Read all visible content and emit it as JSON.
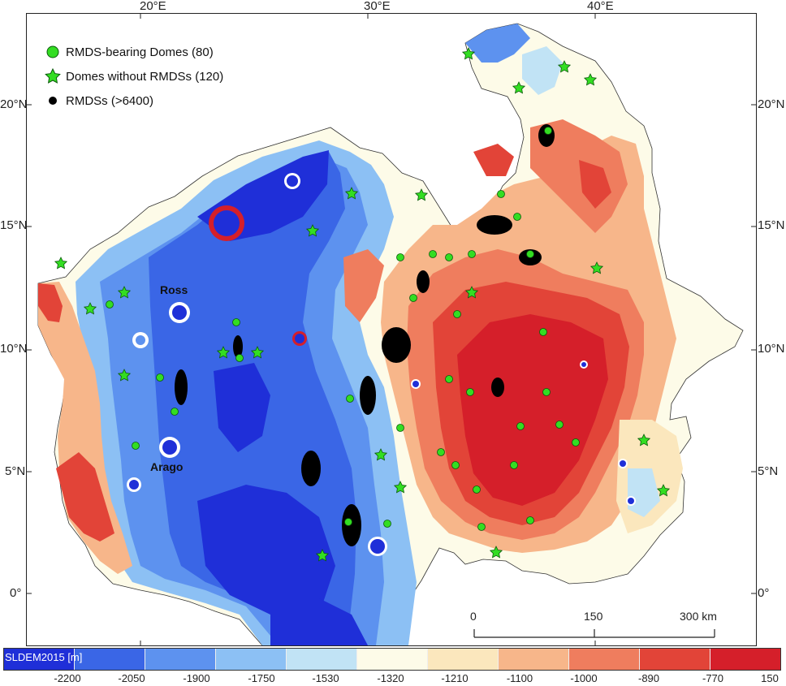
{
  "map": {
    "lon_labels": [
      "20°E",
      "30°E",
      "40°E"
    ],
    "lat_labels": [
      "20°N",
      "15°N",
      "10°N",
      "5°N",
      "0°"
    ],
    "crater_labels": {
      "ross": "Ross",
      "arago": "Arago"
    },
    "scale_bar": {
      "ticks": [
        "0",
        "150",
        "300 km"
      ]
    }
  },
  "legend": {
    "items": [
      {
        "label": "RMDS-bearing Domes (80)",
        "symbol": "circle",
        "color": "#33dd22"
      },
      {
        "label": "Domes without RMDSs (120)",
        "symbol": "star",
        "color": "#33dd22"
      },
      {
        "label": "RMDSs (>6400)",
        "symbol": "dot",
        "color": "#000000"
      }
    ]
  },
  "colorbar": {
    "title": "SLDEM2015 [m]",
    "labels": [
      "-2200",
      "-2050",
      "-1900",
      "-1750",
      "-1530",
      "-1320",
      "-1210",
      "-1100",
      "-1000",
      "-890",
      "-770",
      "150"
    ],
    "colors": [
      "#1f2fd8",
      "#3a66e6",
      "#5d92ef",
      "#8cc0f4",
      "#c1e3f5",
      "#fdfbe8",
      "#fbe7bd",
      "#f7b68a",
      "#ef7d5e",
      "#e24438",
      "#d51f2a"
    ]
  }
}
